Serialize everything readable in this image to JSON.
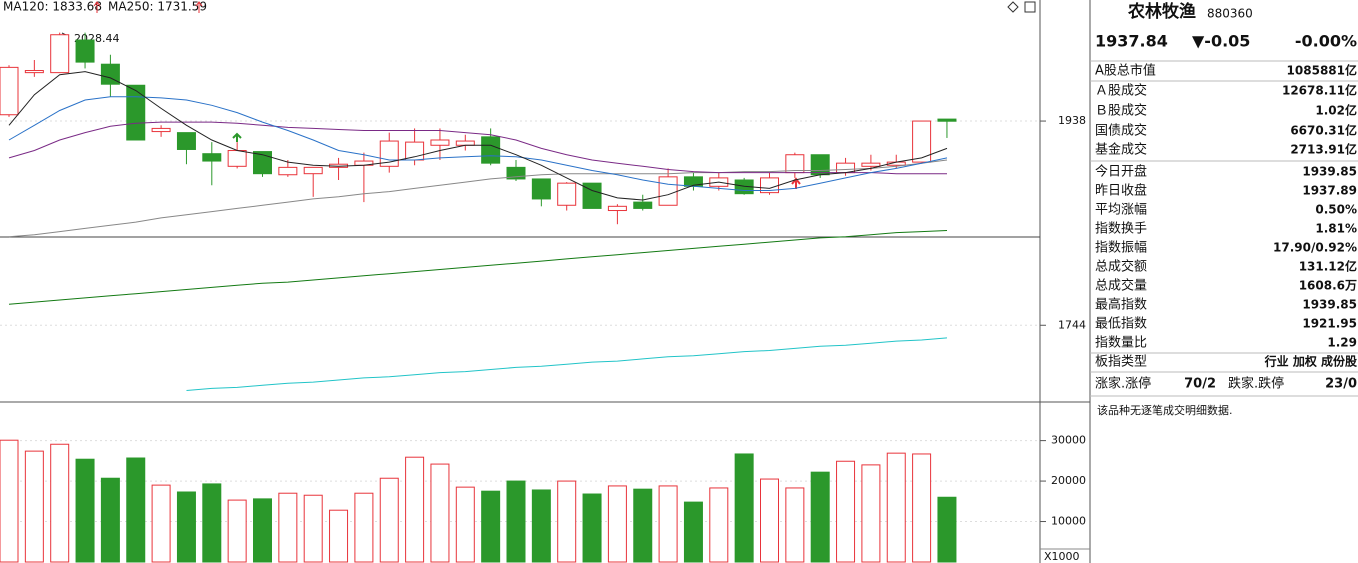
{
  "chart_data": [
    {
      "type": "candlestick",
      "ylim": [
        1673,
        2053
      ],
      "yticks": [
        1744,
        1938
      ],
      "grid": true,
      "up_color": "#e8333a",
      "down_color": "#2b982b",
      "annotations": [
        "2028.44"
      ],
      "open": [
        1944,
        1984,
        1984,
        2015,
        1992,
        1972,
        1928,
        1927,
        1907,
        1895,
        1909,
        1887,
        1888,
        1894,
        1896,
        1895,
        1901,
        1915,
        1915,
        1923,
        1894,
        1883,
        1858,
        1879,
        1853,
        1861,
        1858,
        1885,
        1876,
        1882,
        1870,
        1889,
        1906,
        1889,
        1895,
        1896,
        1899,
        1939.85
      ],
      "close": [
        1989,
        1986,
        2020,
        1994,
        1973,
        1920,
        1931,
        1911,
        1900,
        1910,
        1888,
        1894,
        1894,
        1897,
        1900,
        1919,
        1918,
        1920,
        1919,
        1898,
        1883,
        1864,
        1879,
        1855,
        1857,
        1855,
        1885,
        1876,
        1884,
        1869,
        1884,
        1906,
        1887,
        1898,
        1898,
        1899,
        1938,
        1937.84
      ],
      "high": [
        1991,
        1996,
        2022,
        2022,
        2001,
        1972,
        1934,
        1927,
        1918,
        1918,
        1909,
        1901,
        1894,
        1903,
        1908,
        1927,
        1931,
        1931,
        1925,
        1931,
        1901,
        1883,
        1880,
        1879,
        1859,
        1868,
        1893,
        1889,
        1889,
        1884,
        1889,
        1908,
        1906,
        1903,
        1906,
        1906,
        1938,
        1939.85
      ],
      "low": [
        1942,
        1980,
        1984,
        1988,
        1961,
        1920,
        1923,
        1897,
        1877,
        1893,
        1885,
        1885,
        1866,
        1882,
        1861,
        1889,
        1896,
        1901,
        1910,
        1896,
        1881,
        1857,
        1853,
        1855,
        1840,
        1853,
        1858,
        1872,
        1872,
        1868,
        1868,
        1884,
        1884,
        1886,
        1891,
        1893,
        1899,
        1921.95
      ],
      "series": [
        {
          "name": "MA120: 1833.68",
          "color": "#137a13",
          "values": [
            1764,
            1766,
            1768,
            1770,
            1772,
            1774,
            1776,
            1778,
            1780,
            1782,
            1784,
            1785,
            1787,
            1789,
            1791,
            1793,
            1795,
            1797,
            1799,
            1801,
            1803,
            1805,
            1807,
            1809,
            1811,
            1813,
            1815,
            1817,
            1819,
            1821,
            1823,
            1825,
            1827,
            1828,
            1830,
            1832,
            1833,
            1834
          ]
        },
        {
          "name": "MA250: 1731.59",
          "color": "#22c4c8",
          "values": [
            null,
            null,
            null,
            null,
            null,
            null,
            null,
            1682,
            1684,
            1685,
            1687,
            1689,
            1690,
            1692,
            1694,
            1695,
            1697,
            1699,
            1700,
            1702,
            1704,
            1705,
            1707,
            1709,
            1710,
            1712,
            1714,
            1715,
            1717,
            1719,
            1720,
            1722,
            1724,
            1725,
            1727,
            1729,
            1730,
            1732
          ]
        },
        {
          "color": "#888888",
          "values": [
            1828,
            1830,
            1833,
            1836,
            1839,
            1842,
            1846,
            1849,
            1852,
            1855,
            1858,
            1861,
            1864,
            1866,
            1869,
            1871,
            1874,
            1877,
            1880,
            1883,
            1885,
            1887,
            1888,
            1888,
            1888,
            1888,
            1888,
            1889,
            1889,
            1890,
            1890,
            1891,
            1891,
            1892,
            1893,
            1895,
            1898,
            1901
          ]
        },
        {
          "color": "#7a2a86",
          "values": [
            1903,
            1910,
            1920,
            1927,
            1933,
            1936,
            1937,
            1937,
            1937,
            1936,
            1934,
            1932,
            1931,
            1930,
            1929,
            1929,
            1929,
            1929,
            1927,
            1925,
            1920,
            1912,
            1906,
            1901,
            1898,
            1895,
            1892,
            1890,
            1889,
            1889,
            1889,
            1889,
            1889,
            1889,
            1889,
            1888,
            1888,
            1888
          ]
        },
        {
          "color": "#2a72c8",
          "values": [
            1920,
            1934,
            1948,
            1958,
            1961,
            1961,
            1960,
            1958,
            1953,
            1946,
            1937,
            1929,
            1920,
            1910,
            1906,
            1901,
            1901,
            1903,
            1904,
            1905,
            1904,
            1901,
            1896,
            1891,
            1887,
            1882,
            1878,
            1876,
            1874,
            1872,
            1872,
            1874,
            1879,
            1884,
            1889,
            1893,
            1898,
            1903
          ]
        },
        {
          "color": "#222222",
          "values": [
            1934,
            1963,
            1982,
            1985,
            1979,
            1967,
            1950,
            1934,
            1920,
            1910,
            1906,
            1899,
            1896,
            1895,
            1896,
            1899,
            1904,
            1910,
            1915,
            1915,
            1906,
            1896,
            1884,
            1872,
            1865,
            1863,
            1868,
            1877,
            1880,
            1876,
            1874,
            1882,
            1887,
            1889,
            1893,
            1899,
            1903,
            1912
          ]
        }
      ]
    },
    {
      "type": "bar",
      "ylim": [
        0,
        38800
      ],
      "yticks": [
        10000,
        20000,
        30000
      ],
      "grid": true,
      "unit_label": "X1000",
      "values": [
        30100,
        27400,
        29100,
        25400,
        20700,
        25700,
        19000,
        17300,
        19300,
        15300,
        15600,
        17000,
        16500,
        12800,
        17000,
        20700,
        25900,
        24200,
        18500,
        17500,
        20000,
        17800,
        20000,
        16800,
        18800,
        18000,
        18800,
        14800,
        18300,
        26700,
        20500,
        18300,
        22200,
        24900,
        24000,
        26900,
        26700,
        16000
      ]
    }
  ],
  "panel": {
    "name": "农林牧渔",
    "code": "880360",
    "price": "1937.84",
    "change": "▼-0.05",
    "change_pct": "-0.00%",
    "price_color": "#179a17",
    "rows": [
      {
        "label": "A股总市值",
        "value": "1085881亿"
      },
      {
        "label": "Ａ股成交",
        "value": "12678.11亿"
      },
      {
        "label": "Ｂ股成交",
        "value": "1.02亿"
      },
      {
        "label": "国债成交",
        "value": "6670.31亿"
      },
      {
        "label": "基金成交",
        "value": "2713.91亿"
      },
      {
        "label": "今日开盘",
        "value": "1939.85",
        "color": "#e8333a"
      },
      {
        "label": "昨日收盘",
        "value": "1937.89"
      },
      {
        "label": "平均涨幅",
        "value": "0.50%",
        "color": "#e8333a"
      },
      {
        "label": "指数换手",
        "value": "1.81%"
      },
      {
        "label": "指数振幅",
        "value": "17.90/0.92%"
      },
      {
        "label": "总成交额",
        "value": "131.12亿"
      },
      {
        "label": "总成交量",
        "value": "1608.6万"
      },
      {
        "label": "最高指数",
        "value": "1939.85",
        "color": "#e8333a"
      },
      {
        "label": "最低指数",
        "value": "1921.95",
        "color": "#179a17"
      },
      {
        "label": "指数量比",
        "value": "1.29",
        "color": "#e8333a"
      },
      {
        "label": "板指类型",
        "value": "行业 加权 成份股"
      }
    ],
    "breadth": {
      "up_label": "涨家.涨停",
      "up_value": "70/2",
      "up_color": "#e8333a",
      "down_label": "跌家.跌停",
      "down_value": "23/0",
      "down_color": "#179a17"
    },
    "note": "该品种无逐笔成交明细数据."
  }
}
